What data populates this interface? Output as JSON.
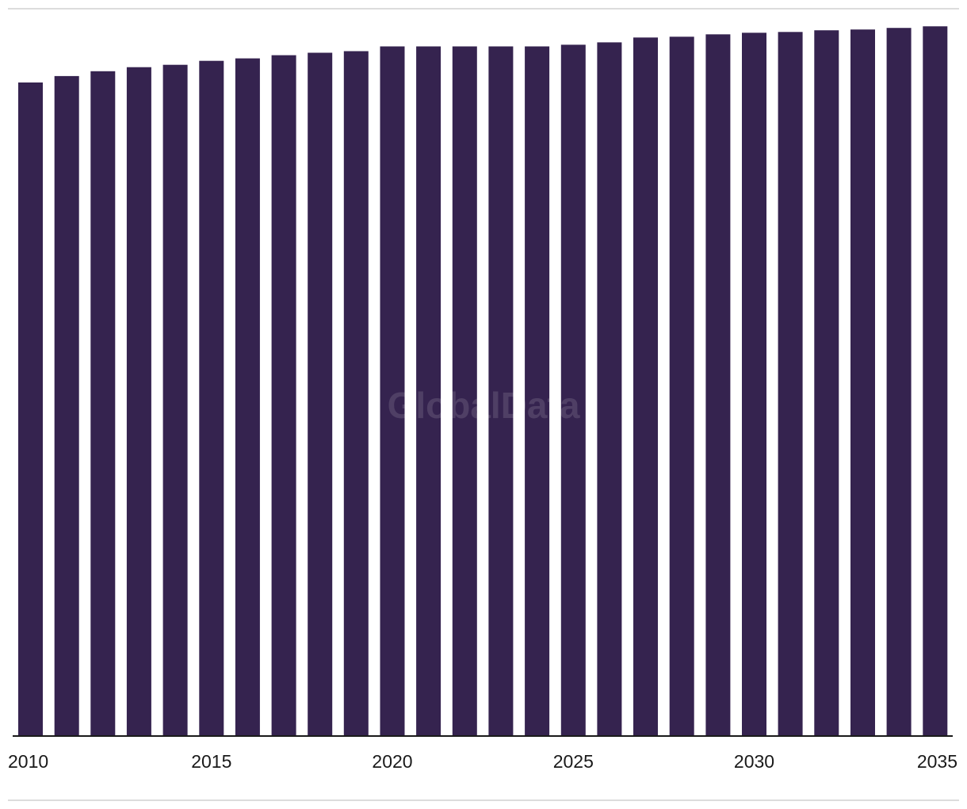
{
  "chart_data": {
    "type": "bar",
    "categories": [
      "2010",
      "2011",
      "2012",
      "2013",
      "2014",
      "2015",
      "2016",
      "2017",
      "2018",
      "2019",
      "2020",
      "2021",
      "2022",
      "2023",
      "2024",
      "2025",
      "2026",
      "2027",
      "2028",
      "2029",
      "2030",
      "2031",
      "2032",
      "2033",
      "2034",
      "2035"
    ],
    "values": [
      814,
      822,
      828,
      833,
      836,
      841,
      844,
      848,
      851,
      853,
      859,
      859,
      859,
      859,
      859,
      861,
      864,
      870,
      871,
      874,
      876,
      877,
      879,
      880,
      882,
      884
    ],
    "x_tick_labels": [
      "2010",
      "2015",
      "2020",
      "2025",
      "2030",
      "2035"
    ],
    "ylim": [
      0,
      900
    ],
    "title": "",
    "xlabel": "",
    "ylabel": "",
    "grid": false,
    "legend": "none",
    "bar_color": "#35234f",
    "axis_color": "#1a1a1a",
    "rule_color": "#dcdcdc"
  },
  "watermark": "GlobalData"
}
